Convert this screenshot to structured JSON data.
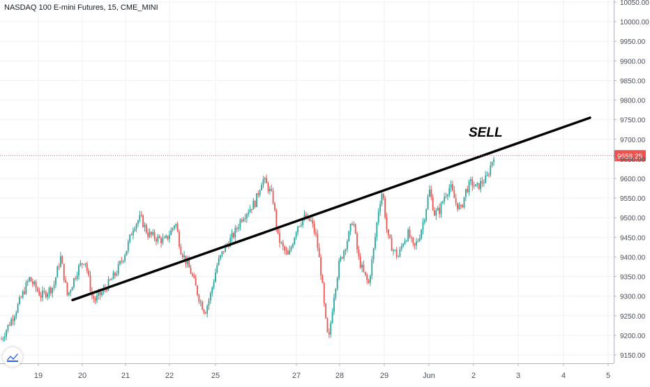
{
  "title": "NASDAQ 100 E-mini Futures, 15, CME_MINI",
  "colors": {
    "up": "#26a69a",
    "down": "#ef5350",
    "grid": "#eef1f5",
    "axis_text": "#4a4e59",
    "price_line": "#ef5350",
    "trendline": "#000000"
  },
  "chart_data": {
    "type": "candlestick",
    "title": "NASDAQ 100 E-mini Futures, 15, CME_MINI",
    "symbol": "NASDAQ 100 E-mini Futures",
    "interval": "15",
    "exchange": "CME_MINI",
    "current_price": 9658.25,
    "current_price_label": "9658.25",
    "ylim": [
      9130,
      10060
    ],
    "y_ticks": [
      "10050.00",
      "10000.00",
      "9950.00",
      "9900.00",
      "9850.00",
      "9800.00",
      "9750.00",
      "9700.00",
      "9650.00",
      "9600.00",
      "9550.00",
      "9500.00",
      "9450.00",
      "9400.00",
      "9350.00",
      "9300.00",
      "9250.00",
      "9200.00",
      "9150.00"
    ],
    "x_ticks": [
      "19",
      "20",
      "21",
      "22",
      "25",
      "27",
      "28",
      "29",
      "Jun",
      "2",
      "3",
      "4",
      "5"
    ],
    "grid": true,
    "trendline": {
      "start": [
        "20",
        9290
      ],
      "end": [
        "4",
        9755
      ]
    },
    "annotation": "SELL",
    "price_path": [
      [
        9190,
        0
      ],
      [
        9260,
        8
      ],
      [
        9345,
        16
      ],
      [
        9300,
        23
      ],
      [
        9325,
        30
      ],
      [
        9400,
        34
      ],
      [
        9300,
        38
      ],
      [
        9370,
        44
      ],
      [
        9395,
        48
      ],
      [
        9300,
        52
      ],
      [
        9290,
        54
      ],
      [
        9310,
        58
      ],
      [
        9340,
        63
      ],
      [
        9360,
        66
      ],
      [
        9420,
        72
      ],
      [
        9480,
        76
      ],
      [
        9500,
        80
      ],
      [
        9460,
        84
      ],
      [
        9450,
        88
      ],
      [
        9440,
        94
      ],
      [
        9470,
        98
      ],
      [
        9490,
        100
      ],
      [
        9420,
        103
      ],
      [
        9390,
        106
      ],
      [
        9360,
        109
      ],
      [
        9290,
        114
      ],
      [
        9260,
        117
      ],
      [
        9300,
        120
      ],
      [
        9380,
        124
      ],
      [
        9420,
        128
      ],
      [
        9440,
        131
      ],
      [
        9460,
        134
      ],
      [
        9500,
        138
      ],
      [
        9520,
        142
      ],
      [
        9540,
        146
      ],
      [
        9600,
        150
      ],
      [
        9580,
        153
      ],
      [
        9550,
        156
      ],
      [
        9450,
        159
      ],
      [
        9420,
        162
      ],
      [
        9400,
        165
      ],
      [
        9480,
        170
      ],
      [
        9500,
        174
      ],
      [
        9490,
        178
      ],
      [
        9450,
        181
      ],
      [
        9350,
        184
      ],
      [
        9250,
        186
      ],
      [
        9180,
        188
      ],
      [
        9300,
        191
      ],
      [
        9380,
        194
      ],
      [
        9420,
        197
      ],
      [
        9460,
        200
      ],
      [
        9500,
        202
      ],
      [
        9400,
        205
      ],
      [
        9360,
        208
      ],
      [
        9330,
        211
      ],
      [
        9420,
        214
      ],
      [
        9530,
        217
      ],
      [
        9570,
        219
      ],
      [
        9450,
        222
      ],
      [
        9420,
        225
      ],
      [
        9400,
        228
      ],
      [
        9440,
        231
      ],
      [
        9460,
        234
      ],
      [
        9420,
        237
      ],
      [
        9450,
        240
      ],
      [
        9500,
        243
      ],
      [
        9570,
        246
      ],
      [
        9510,
        249
      ],
      [
        9520,
        252
      ],
      [
        9560,
        255
      ],
      [
        9580,
        258
      ],
      [
        9540,
        261
      ],
      [
        9520,
        264
      ],
      [
        9570,
        267
      ],
      [
        9590,
        270
      ],
      [
        9575,
        273
      ],
      [
        9590,
        276
      ],
      [
        9600,
        279
      ],
      [
        9660,
        283
      ]
    ]
  }
}
